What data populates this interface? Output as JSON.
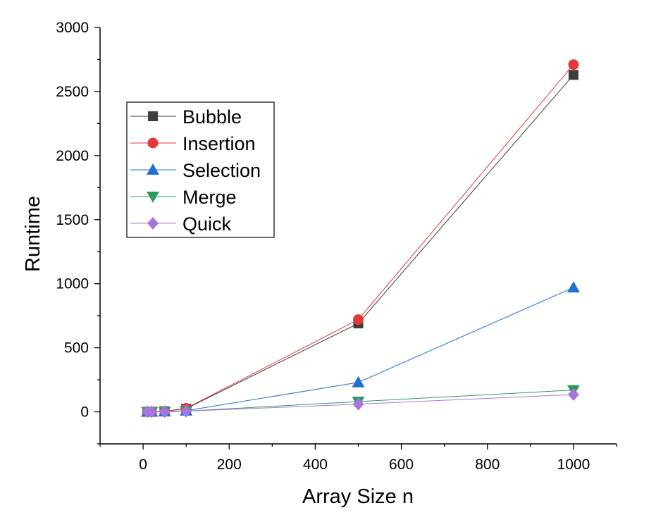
{
  "chart_data": {
    "type": "line",
    "title": "",
    "xlabel": "Array Size n",
    "ylabel": "Runtime",
    "xlim": [
      -100,
      1100
    ],
    "ylim": [
      -250,
      3000
    ],
    "xticks": [
      0,
      200,
      400,
      600,
      800,
      1000
    ],
    "yticks": [
      0,
      500,
      1000,
      1500,
      2000,
      2500,
      3000
    ],
    "grid": false,
    "legend_position": "top-left",
    "x": [
      10,
      20,
      50,
      100,
      500,
      1000
    ],
    "series": [
      {
        "name": "Bubble",
        "color": "#3d3d3d",
        "marker": "square",
        "values": [
          0.1,
          0.5,
          4,
          25,
          690,
          2630
        ]
      },
      {
        "name": "Insertion",
        "color": "#e8373b",
        "marker": "circle",
        "values": [
          0.1,
          0.5,
          5,
          28,
          720,
          2710
        ]
      },
      {
        "name": "Selection",
        "color": "#1f6fd6",
        "marker": "triangle-up",
        "values": [
          0.1,
          0.3,
          2,
          9,
          230,
          970
        ]
      },
      {
        "name": "Merge",
        "color": "#2e9b5e",
        "marker": "triangle-down",
        "values": [
          0.1,
          0.3,
          1,
          6,
          80,
          170
        ]
      },
      {
        "name": "Quick",
        "color": "#a975dd",
        "marker": "diamond",
        "values": [
          0.1,
          0.2,
          1,
          5,
          60,
          135
        ]
      }
    ]
  }
}
